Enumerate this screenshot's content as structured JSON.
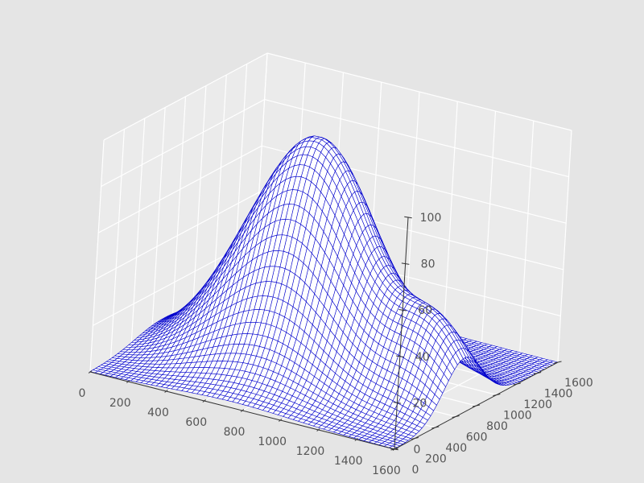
{
  "chart_data": {
    "type": "surface3d",
    "title": "",
    "xlabel": "",
    "ylabel": "",
    "zlabel": "",
    "xlim": [
      0,
      1600
    ],
    "ylim": [
      0,
      1600
    ],
    "zlim": [
      0,
      100
    ],
    "x_ticks": [
      "0",
      "200",
      "400",
      "600",
      "800",
      "1000",
      "1200",
      "1400",
      "1600"
    ],
    "y_ticks": [
      "0",
      "200",
      "400",
      "600",
      "800",
      "1000",
      "1200",
      "1400",
      "1600"
    ],
    "z_ticks": [
      "0",
      "20",
      "40",
      "60",
      "80",
      "100"
    ],
    "grid": true,
    "surface": {
      "description_of_shape": "sum of gaussian bumps clipped at z=0",
      "bumps": [
        {
          "x": 750,
          "y": 700,
          "height": 100,
          "sigma_x": 320,
          "sigma_y": 260
        },
        {
          "x": 450,
          "y": 1250,
          "height": 55,
          "sigma_x": 200,
          "sigma_y": 200
        },
        {
          "x": 1450,
          "y": 650,
          "height": 30,
          "sigma_x": 180,
          "sigma_y": 180
        }
      ],
      "wire_color": "#0000cc",
      "face_color": "#ffffff"
    },
    "colors": {
      "background": "#e5e5e5",
      "pane": "#ebebeb",
      "grid": "#ffffff",
      "axis": "#333333"
    }
  }
}
